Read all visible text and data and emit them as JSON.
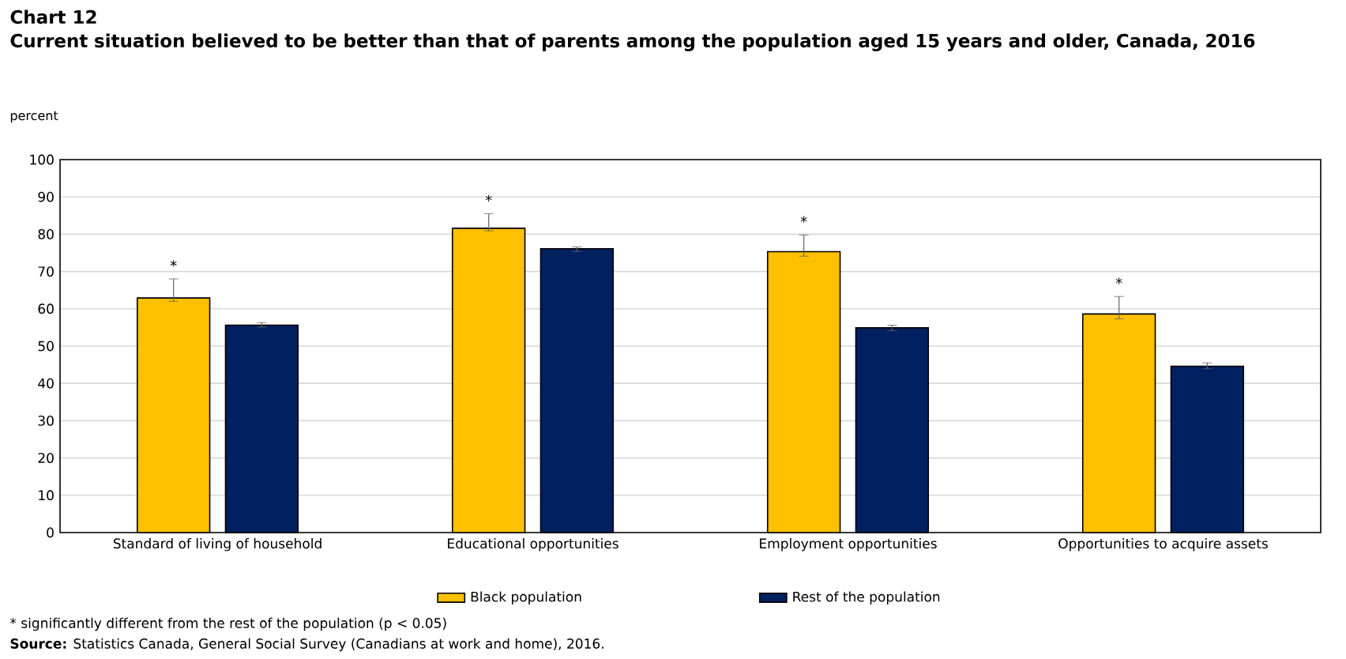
{
  "chart_data": {
    "type": "bar",
    "title": "Chart 12",
    "subtitle": "Current situation believed to be better than that of parents among the population aged 15 years and older, Canada, 2016",
    "ylabel": "percent",
    "categories": [
      "Standard of living of household",
      "Educational opportunities",
      "Employment opportunities",
      "Opportunities to acquire assets"
    ],
    "series": [
      {
        "name": "Black population",
        "color": "#ffc000",
        "values": [
          62.9,
          81.6,
          75.3,
          58.6
        ],
        "errors": [
          [
            62.0,
            68.0
          ],
          [
            80.9,
            85.5
          ],
          [
            74.1,
            79.8
          ],
          [
            57.3,
            63.3
          ]
        ]
      },
      {
        "name": "Rest of the population",
        "color": "#002060",
        "values": [
          55.6,
          76.1,
          54.9,
          44.6
        ],
        "errors": [
          [
            55.1,
            56.3
          ],
          [
            75.4,
            76.6
          ],
          [
            54.1,
            55.6
          ],
          [
            43.9,
            45.5
          ]
        ]
      }
    ],
    "ylim": [
      0,
      100
    ],
    "yticks": [
      0,
      10,
      20,
      30,
      40,
      50,
      60,
      70,
      80,
      90,
      100
    ],
    "grid": "y",
    "legend": "bottom",
    "annotations": [
      "*",
      "*",
      "*",
      "*",
      "* significantly different from the rest of the population (p < 0.05)",
      "**Source:** Statistics Canada, General Social Survey (Canadians at work and home), 2016."
    ]
  }
}
